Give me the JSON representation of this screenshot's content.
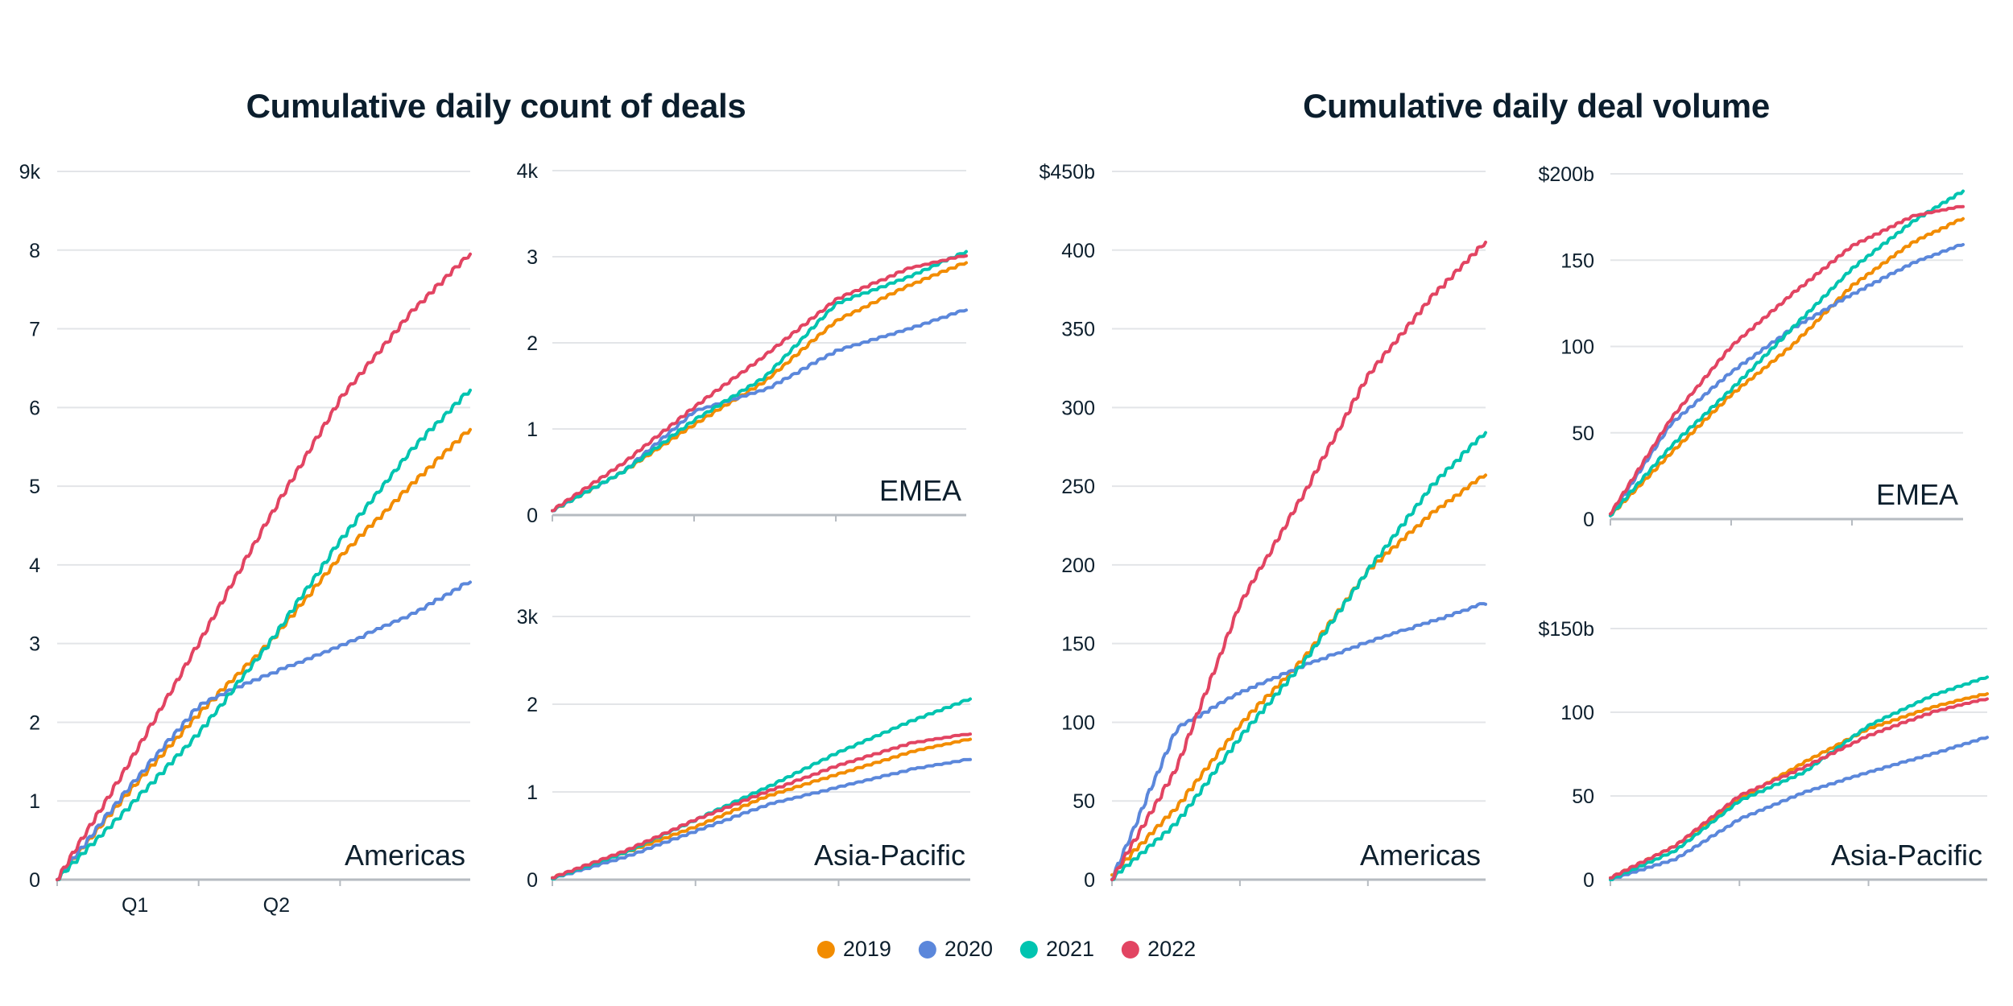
{
  "chart_data": [
    {
      "id": "count-americas",
      "type": "line",
      "group_title": "Cumulative daily count of deals",
      "region": "Americas",
      "ylabel_unit": "k",
      "ylim": [
        0,
        9
      ],
      "yticks": [
        "0",
        "1",
        "2",
        "3",
        "4",
        "5",
        "6",
        "7",
        "8",
        "9k"
      ],
      "xticks": [
        "Q1",
        "Q2"
      ],
      "x_quarters": 2.92,
      "series": [
        {
          "name": "2019",
          "end": 5.72,
          "anchors": [
            [
              0,
              0
            ],
            [
              0.5,
              1.1
            ],
            [
              1,
              2.1
            ],
            [
              1.5,
              3.0
            ],
            [
              2,
              4.1
            ],
            [
              2.5,
              5.0
            ],
            [
              2.92,
              5.72
            ]
          ]
        },
        {
          "name": "2020",
          "end": 3.78,
          "anchors": [
            [
              0,
              0
            ],
            [
              0.5,
              1.15
            ],
            [
              1,
              2.2
            ],
            [
              1.3,
              2.45
            ],
            [
              2,
              2.95
            ],
            [
              2.5,
              3.35
            ],
            [
              2.92,
              3.78
            ]
          ]
        },
        {
          "name": "2021",
          "end": 6.22,
          "anchors": [
            [
              0,
              0
            ],
            [
              0.5,
              0.9
            ],
            [
              1,
              1.85
            ],
            [
              1.5,
              3.0
            ],
            [
              2,
              4.3
            ],
            [
              2.5,
              5.45
            ],
            [
              2.92,
              6.22
            ]
          ]
        },
        {
          "name": "2022",
          "end": 7.95,
          "anchors": [
            [
              0,
              0
            ],
            [
              0.5,
              1.45
            ],
            [
              1,
              3.0
            ],
            [
              1.5,
              4.6
            ],
            [
              2,
              6.1
            ],
            [
              2.5,
              7.2
            ],
            [
              2.92,
              7.95
            ]
          ]
        }
      ]
    },
    {
      "id": "count-emea",
      "type": "line",
      "region": "EMEA",
      "ylim": [
        0,
        4
      ],
      "yticks": [
        "0",
        "1",
        "2",
        "3",
        "4k"
      ],
      "x_quarters": 2.92,
      "series": [
        {
          "name": "2019",
          "end": 2.93,
          "anchors": [
            [
              0,
              0.05
            ],
            [
              0.5,
              0.5
            ],
            [
              1,
              1.05
            ],
            [
              1.5,
              1.55
            ],
            [
              2,
              2.25
            ],
            [
              2.5,
              2.65
            ],
            [
              2.92,
              2.93
            ]
          ]
        },
        {
          "name": "2020",
          "end": 2.38,
          "anchors": [
            [
              0,
              0.05
            ],
            [
              0.5,
              0.5
            ],
            [
              1,
              1.2
            ],
            [
              1.5,
              1.45
            ],
            [
              2,
              1.9
            ],
            [
              2.5,
              2.15
            ],
            [
              2.92,
              2.38
            ]
          ]
        },
        {
          "name": "2021",
          "end": 3.06,
          "anchors": [
            [
              0,
              0.05
            ],
            [
              0.5,
              0.5
            ],
            [
              1,
              1.1
            ],
            [
              1.5,
              1.6
            ],
            [
              2,
              2.45
            ],
            [
              2.5,
              2.75
            ],
            [
              2.92,
              3.06
            ]
          ]
        },
        {
          "name": "2022",
          "end": 3.01,
          "anchors": [
            [
              0,
              0.05
            ],
            [
              0.5,
              0.6
            ],
            [
              1,
              1.25
            ],
            [
              1.5,
              1.85
            ],
            [
              2,
              2.5
            ],
            [
              2.5,
              2.85
            ],
            [
              2.92,
              3.01
            ]
          ]
        }
      ]
    },
    {
      "id": "count-apac",
      "type": "line",
      "region": "Asia-Pacific",
      "ylim": [
        0,
        3
      ],
      "yticks": [
        "0",
        "1",
        "2",
        "3k"
      ],
      "x_quarters": 2.92,
      "series": [
        {
          "name": "2019",
          "end": 1.6,
          "anchors": [
            [
              0,
              0.02
            ],
            [
              0.5,
              0.3
            ],
            [
              1,
              0.6
            ],
            [
              1.5,
              0.95
            ],
            [
              2,
              1.2
            ],
            [
              2.5,
              1.45
            ],
            [
              2.92,
              1.6
            ]
          ]
        },
        {
          "name": "2020",
          "end": 1.37,
          "anchors": [
            [
              0,
              0.01
            ],
            [
              0.5,
              0.25
            ],
            [
              1,
              0.55
            ],
            [
              1.5,
              0.85
            ],
            [
              2,
              1.05
            ],
            [
              2.5,
              1.25
            ],
            [
              2.92,
              1.37
            ]
          ]
        },
        {
          "name": "2021",
          "end": 2.06,
          "anchors": [
            [
              0,
              0.01
            ],
            [
              0.5,
              0.3
            ],
            [
              1,
              0.68
            ],
            [
              1.5,
              1.05
            ],
            [
              2,
              1.45
            ],
            [
              2.5,
              1.8
            ],
            [
              2.92,
              2.06
            ]
          ]
        },
        {
          "name": "2022",
          "end": 1.66,
          "anchors": [
            [
              0,
              0.02
            ],
            [
              0.5,
              0.32
            ],
            [
              1,
              0.68
            ],
            [
              1.5,
              1.0
            ],
            [
              2,
              1.3
            ],
            [
              2.5,
              1.55
            ],
            [
              2.92,
              1.66
            ]
          ]
        }
      ]
    },
    {
      "id": "volume-americas",
      "type": "line",
      "group_title": "Cumulative daily deal volume",
      "region": "Americas",
      "ylim": [
        0,
        450
      ],
      "yticks": [
        "0",
        "50",
        "100",
        "150",
        "200",
        "250",
        "300",
        "350",
        "400",
        "$450b"
      ],
      "x_quarters": 2.92,
      "series": [
        {
          "name": "2019",
          "end": 257,
          "anchors": [
            [
              0,
              3
            ],
            [
              0.5,
              45
            ],
            [
              1,
              98
            ],
            [
              1.5,
              140
            ],
            [
              2,
              196
            ],
            [
              2.5,
              232
            ],
            [
              2.92,
              257
            ]
          ]
        },
        {
          "name": "2020",
          "end": 175,
          "anchors": [
            [
              0,
              0
            ],
            [
              0.5,
              95
            ],
            [
              1,
              118
            ],
            [
              1.5,
              135
            ],
            [
              2,
              150
            ],
            [
              2.5,
              163
            ],
            [
              2.92,
              175
            ]
          ]
        },
        {
          "name": "2021",
          "end": 284,
          "anchors": [
            [
              0,
              0
            ],
            [
              0.5,
              35
            ],
            [
              1,
              90
            ],
            [
              1.5,
              138
            ],
            [
              2,
              196
            ],
            [
              2.5,
              250
            ],
            [
              2.92,
              284
            ]
          ]
        },
        {
          "name": "2022",
          "end": 405,
          "anchors": [
            [
              0,
              0
            ],
            [
              0.5,
              70
            ],
            [
              1,
              175
            ],
            [
              1.5,
              245
            ],
            [
              2,
              320
            ],
            [
              2.5,
              370
            ],
            [
              2.92,
              405
            ]
          ]
        }
      ]
    },
    {
      "id": "volume-emea",
      "type": "line",
      "region": "EMEA",
      "ylim": [
        0,
        200
      ],
      "yticks": [
        "0",
        "50",
        "100",
        "150",
        "$200b"
      ],
      "x_quarters": 2.92,
      "series": [
        {
          "name": "2019",
          "end": 174,
          "anchors": [
            [
              0,
              2
            ],
            [
              0.5,
              38
            ],
            [
              1,
              72
            ],
            [
              1.5,
              100
            ],
            [
              2,
              135
            ],
            [
              2.5,
              160
            ],
            [
              2.92,
              174
            ]
          ]
        },
        {
          "name": "2020",
          "end": 159,
          "anchors": [
            [
              0,
              2
            ],
            [
              0.5,
              55
            ],
            [
              1,
              85
            ],
            [
              1.5,
              110
            ],
            [
              2,
              130
            ],
            [
              2.5,
              148
            ],
            [
              2.92,
              159
            ]
          ]
        },
        {
          "name": "2021",
          "end": 190,
          "anchors": [
            [
              0,
              2
            ],
            [
              0.5,
              42
            ],
            [
              1,
              75
            ],
            [
              1.5,
              110
            ],
            [
              2,
              145
            ],
            [
              2.5,
              172
            ],
            [
              2.92,
              190
            ]
          ]
        },
        {
          "name": "2022",
          "end": 181,
          "anchors": [
            [
              0,
              3
            ],
            [
              0.5,
              58
            ],
            [
              1,
              100
            ],
            [
              1.5,
              130
            ],
            [
              2,
              158
            ],
            [
              2.5,
              175
            ],
            [
              2.92,
              181
            ]
          ]
        }
      ]
    },
    {
      "id": "volume-apac",
      "type": "line",
      "region": "Asia-Pacific",
      "ylim": [
        0,
        150
      ],
      "yticks": [
        "0",
        "50",
        "100",
        "$150b"
      ],
      "x_quarters": 2.92,
      "series": [
        {
          "name": "2019",
          "end": 111,
          "anchors": [
            [
              0,
              1
            ],
            [
              0.5,
              20
            ],
            [
              1,
              48
            ],
            [
              1.5,
              70
            ],
            [
              2,
              90
            ],
            [
              2.5,
              103
            ],
            [
              2.92,
              111
            ]
          ]
        },
        {
          "name": "2020",
          "end": 85,
          "anchors": [
            [
              0,
              0
            ],
            [
              0.5,
              12
            ],
            [
              1,
              36
            ],
            [
              1.5,
              52
            ],
            [
              2,
              64
            ],
            [
              2.5,
              75
            ],
            [
              2.92,
              85
            ]
          ]
        },
        {
          "name": "2021",
          "end": 121,
          "anchors": [
            [
              0,
              0
            ],
            [
              0.5,
              17
            ],
            [
              1,
              47
            ],
            [
              1.5,
              64
            ],
            [
              2,
              92
            ],
            [
              2.5,
              110
            ],
            [
              2.92,
              121
            ]
          ]
        },
        {
          "name": "2022",
          "end": 108,
          "anchors": [
            [
              0,
              1
            ],
            [
              0.5,
              20
            ],
            [
              1,
              50
            ],
            [
              1.5,
              67
            ],
            [
              2,
              86
            ],
            [
              2.5,
              100
            ],
            [
              2.92,
              108
            ]
          ]
        }
      ]
    }
  ],
  "titles": {
    "count": "Cumulative daily count of deals",
    "volume": "Cumulative daily deal volume"
  },
  "legend": [
    {
      "label": "2019",
      "color": "#F28C00"
    },
    {
      "label": "2020",
      "color": "#5B87DB"
    },
    {
      "label": "2021",
      "color": "#00C4B0"
    },
    {
      "label": "2022",
      "color": "#E24462"
    }
  ]
}
